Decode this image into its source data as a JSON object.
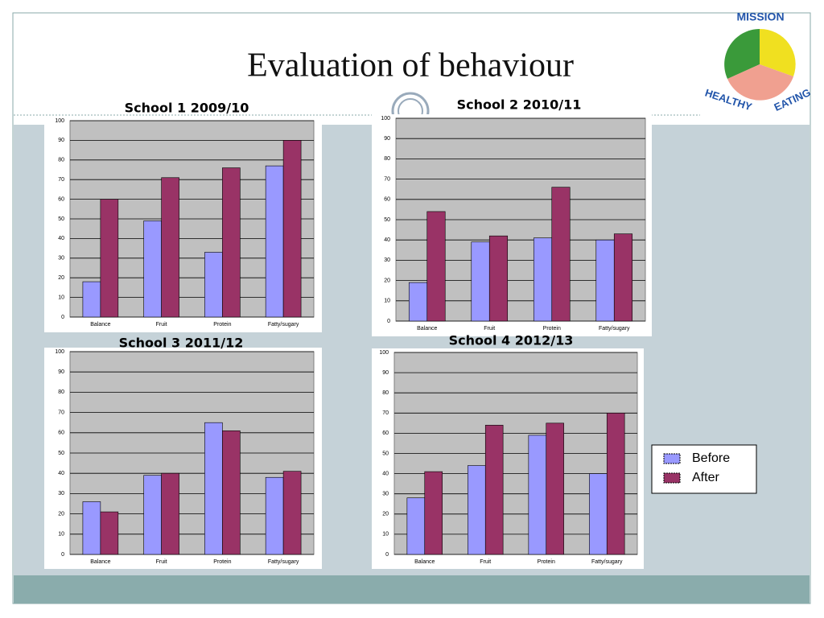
{
  "title": "Evaluation of behaviour",
  "logo": {
    "top": "MISSION",
    "left": "HEALTHY",
    "right": "EATING"
  },
  "legend": [
    {
      "name": "Before",
      "color": "#9999ff"
    },
    {
      "name": "After",
      "color": "#993366"
    }
  ],
  "chart_data": [
    {
      "type": "bar",
      "title": "School 1   2009/10",
      "categories": [
        "Balance",
        "Fruit",
        "Protein",
        "Fatty/sugary"
      ],
      "series": [
        {
          "values": [
            18,
            49,
            33,
            77
          ]
        },
        {
          "values": [
            60,
            71,
            76,
            90
          ]
        }
      ],
      "ylim": [
        0,
        100
      ],
      "yticks": [
        0,
        10,
        20,
        30,
        40,
        50,
        60,
        70,
        80,
        90,
        100
      ],
      "grid": true
    },
    {
      "type": "bar",
      "title": "School 2   2010/11",
      "categories": [
        "Balance",
        "Fruit",
        "Protein",
        "Fatty/sugary"
      ],
      "series": [
        {
          "values": [
            19,
            39,
            41,
            40
          ]
        },
        {
          "values": [
            54,
            42,
            66,
            43
          ]
        }
      ],
      "ylim": [
        0,
        100
      ],
      "yticks": [
        0,
        10,
        20,
        30,
        40,
        50,
        60,
        70,
        80,
        90,
        100
      ],
      "grid": true
    },
    {
      "type": "bar",
      "title": "School 3   2011/12",
      "categories": [
        "Balance",
        "Fruit",
        "Protein",
        "Fatty/sugary"
      ],
      "series": [
        {
          "values": [
            26,
            39,
            65,
            38
          ]
        },
        {
          "values": [
            21,
            40,
            61,
            41
          ]
        }
      ],
      "ylim": [
        0,
        100
      ],
      "yticks": [
        0,
        10,
        20,
        30,
        40,
        50,
        60,
        70,
        80,
        90,
        100
      ],
      "grid": true
    },
    {
      "type": "bar",
      "title": "School 4   2012/13",
      "categories": [
        "Balance",
        "Fruit",
        "Protein",
        "Fatty/sugary"
      ],
      "series": [
        {
          "values": [
            28,
            44,
            59,
            40
          ]
        },
        {
          "values": [
            41,
            64,
            65,
            70
          ]
        }
      ],
      "ylim": [
        0,
        100
      ],
      "yticks": [
        0,
        10,
        20,
        30,
        40,
        50,
        60,
        70,
        80,
        90,
        100
      ],
      "grid": true
    }
  ]
}
